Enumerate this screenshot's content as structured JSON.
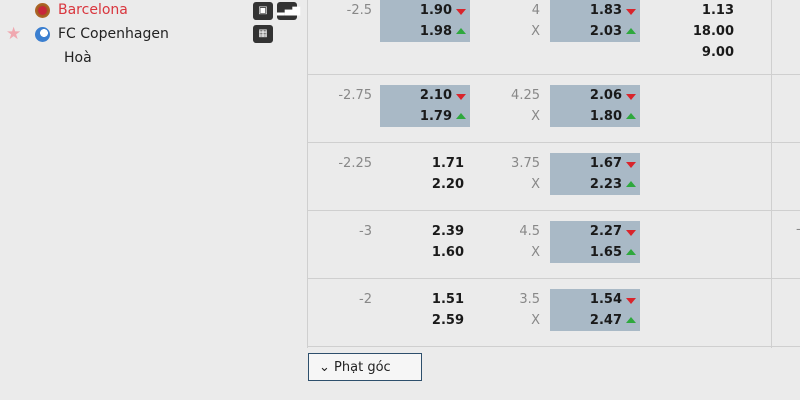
{
  "match": {
    "home": "Barcelona",
    "away": "FC Copenhagen",
    "draw": "Hoà"
  },
  "icons": [
    "monitor-icon",
    "stats-icon",
    "lineup-icon"
  ],
  "colors": {
    "highlight": "#a9b9c6",
    "down": "#d9242b",
    "up": "#2ea83d",
    "home": "#d9363e"
  },
  "rows": [
    {
      "hcap": "-2.5",
      "h1": "1.90",
      "h2": "1.98",
      "hhl": true,
      "ou": "4",
      "ox": "X",
      "o1": "1.83",
      "o2": "2.03",
      "ohl": true,
      "x": [
        "1.13",
        "18.00",
        "9.00"
      ]
    },
    {
      "hcap": "-2.75",
      "h1": "2.10",
      "h2": "1.79",
      "hhl": true,
      "ou": "4.25",
      "ox": "X",
      "o1": "2.06",
      "o2": "1.80",
      "ohl": true
    },
    {
      "hcap": "-2.25",
      "h1": "1.71",
      "h2": "2.20",
      "hhl": false,
      "ou": "3.75",
      "ox": "X",
      "o1": "1.67",
      "o2": "2.23",
      "ohl": true
    },
    {
      "hcap": "-3",
      "h1": "2.39",
      "h2": "1.60",
      "hhl": false,
      "ou": "4.5",
      "ox": "X",
      "o1": "2.27",
      "o2": "1.65",
      "ohl": true
    },
    {
      "hcap": "-2",
      "h1": "1.51",
      "h2": "2.59",
      "hhl": false,
      "ou": "3.5",
      "ox": "X",
      "o1": "1.54",
      "o2": "2.47",
      "ohl": true
    }
  ],
  "corner_button": "Phạt góc"
}
